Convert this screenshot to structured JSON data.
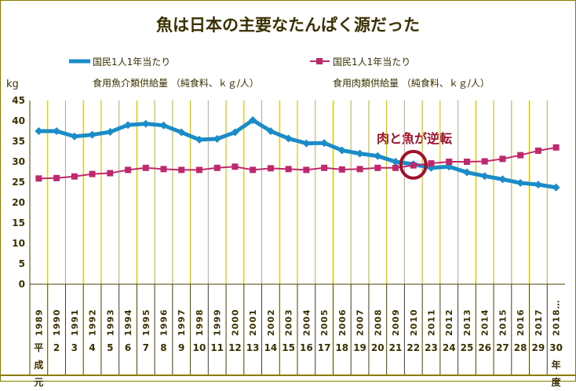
{
  "chart_data": {
    "type": "line",
    "title": "魚は日本の主要なたんぱく源だった",
    "ylabel": "kg",
    "ylim": [
      0,
      45
    ],
    "yticks": [
      0,
      5,
      10,
      15,
      20,
      25,
      30,
      35,
      40,
      45
    ],
    "grid": "vertical",
    "legend_placement": "top",
    "categories": [
      "1989",
      "1990",
      "1991",
      "1992",
      "1993",
      "1994",
      "1995",
      "1996",
      "1997",
      "1998",
      "1999",
      "2000",
      "2001",
      "2002",
      "2003",
      "2004",
      "2005",
      "2006",
      "2007",
      "2008",
      "2009",
      "2010",
      "2011",
      "2012",
      "2013",
      "2014",
      "2015",
      "2016",
      "2017",
      "2018…"
    ],
    "heisei": [
      "平成元",
      "2",
      "3",
      "4",
      "5",
      "6",
      "7",
      "8",
      "9",
      "10",
      "11",
      "12",
      "13",
      "14",
      "15",
      "16",
      "17",
      "18",
      "19",
      "20",
      "21",
      "22",
      "23",
      "24",
      "25",
      "26",
      "27",
      "28",
      "29",
      "30年度"
    ],
    "series": [
      {
        "name_line1": "国民1人1年当たり",
        "name_line2": "食用魚介類供給量 （純食料、ｋｇ/人）",
        "color": "#1a8cc8",
        "marker": "diamond",
        "values": [
          37.5,
          37.5,
          36.2,
          36.6,
          37.3,
          39.0,
          39.3,
          38.9,
          37.2,
          35.4,
          35.6,
          37.2,
          40.2,
          37.5,
          35.7,
          34.5,
          34.6,
          32.8,
          32.0,
          31.4,
          30.0,
          29.4,
          28.5,
          28.8,
          27.4,
          26.5,
          25.7,
          24.8,
          24.4,
          23.7
        ]
      },
      {
        "name_line1": "国民1人1年当たり",
        "name_line2": "食用肉類供給量 （純食料、ｋｇ/人）",
        "color": "#c0286e",
        "marker": "square",
        "values": [
          25.9,
          26.0,
          26.4,
          27.0,
          27.2,
          28.0,
          28.5,
          28.2,
          28.0,
          28.0,
          28.5,
          28.8,
          28.0,
          28.4,
          28.2,
          28.0,
          28.5,
          28.1,
          28.2,
          28.5,
          28.5,
          29.1,
          29.6,
          30.0,
          30.0,
          30.1,
          30.7,
          31.6,
          32.7,
          33.5
        ]
      }
    ],
    "annotation": {
      "text": "肉と魚が逆転",
      "category": "2010",
      "color": "#a0102a"
    },
    "grid_color": "#c8b400",
    "axis_color": "#4a4000"
  }
}
